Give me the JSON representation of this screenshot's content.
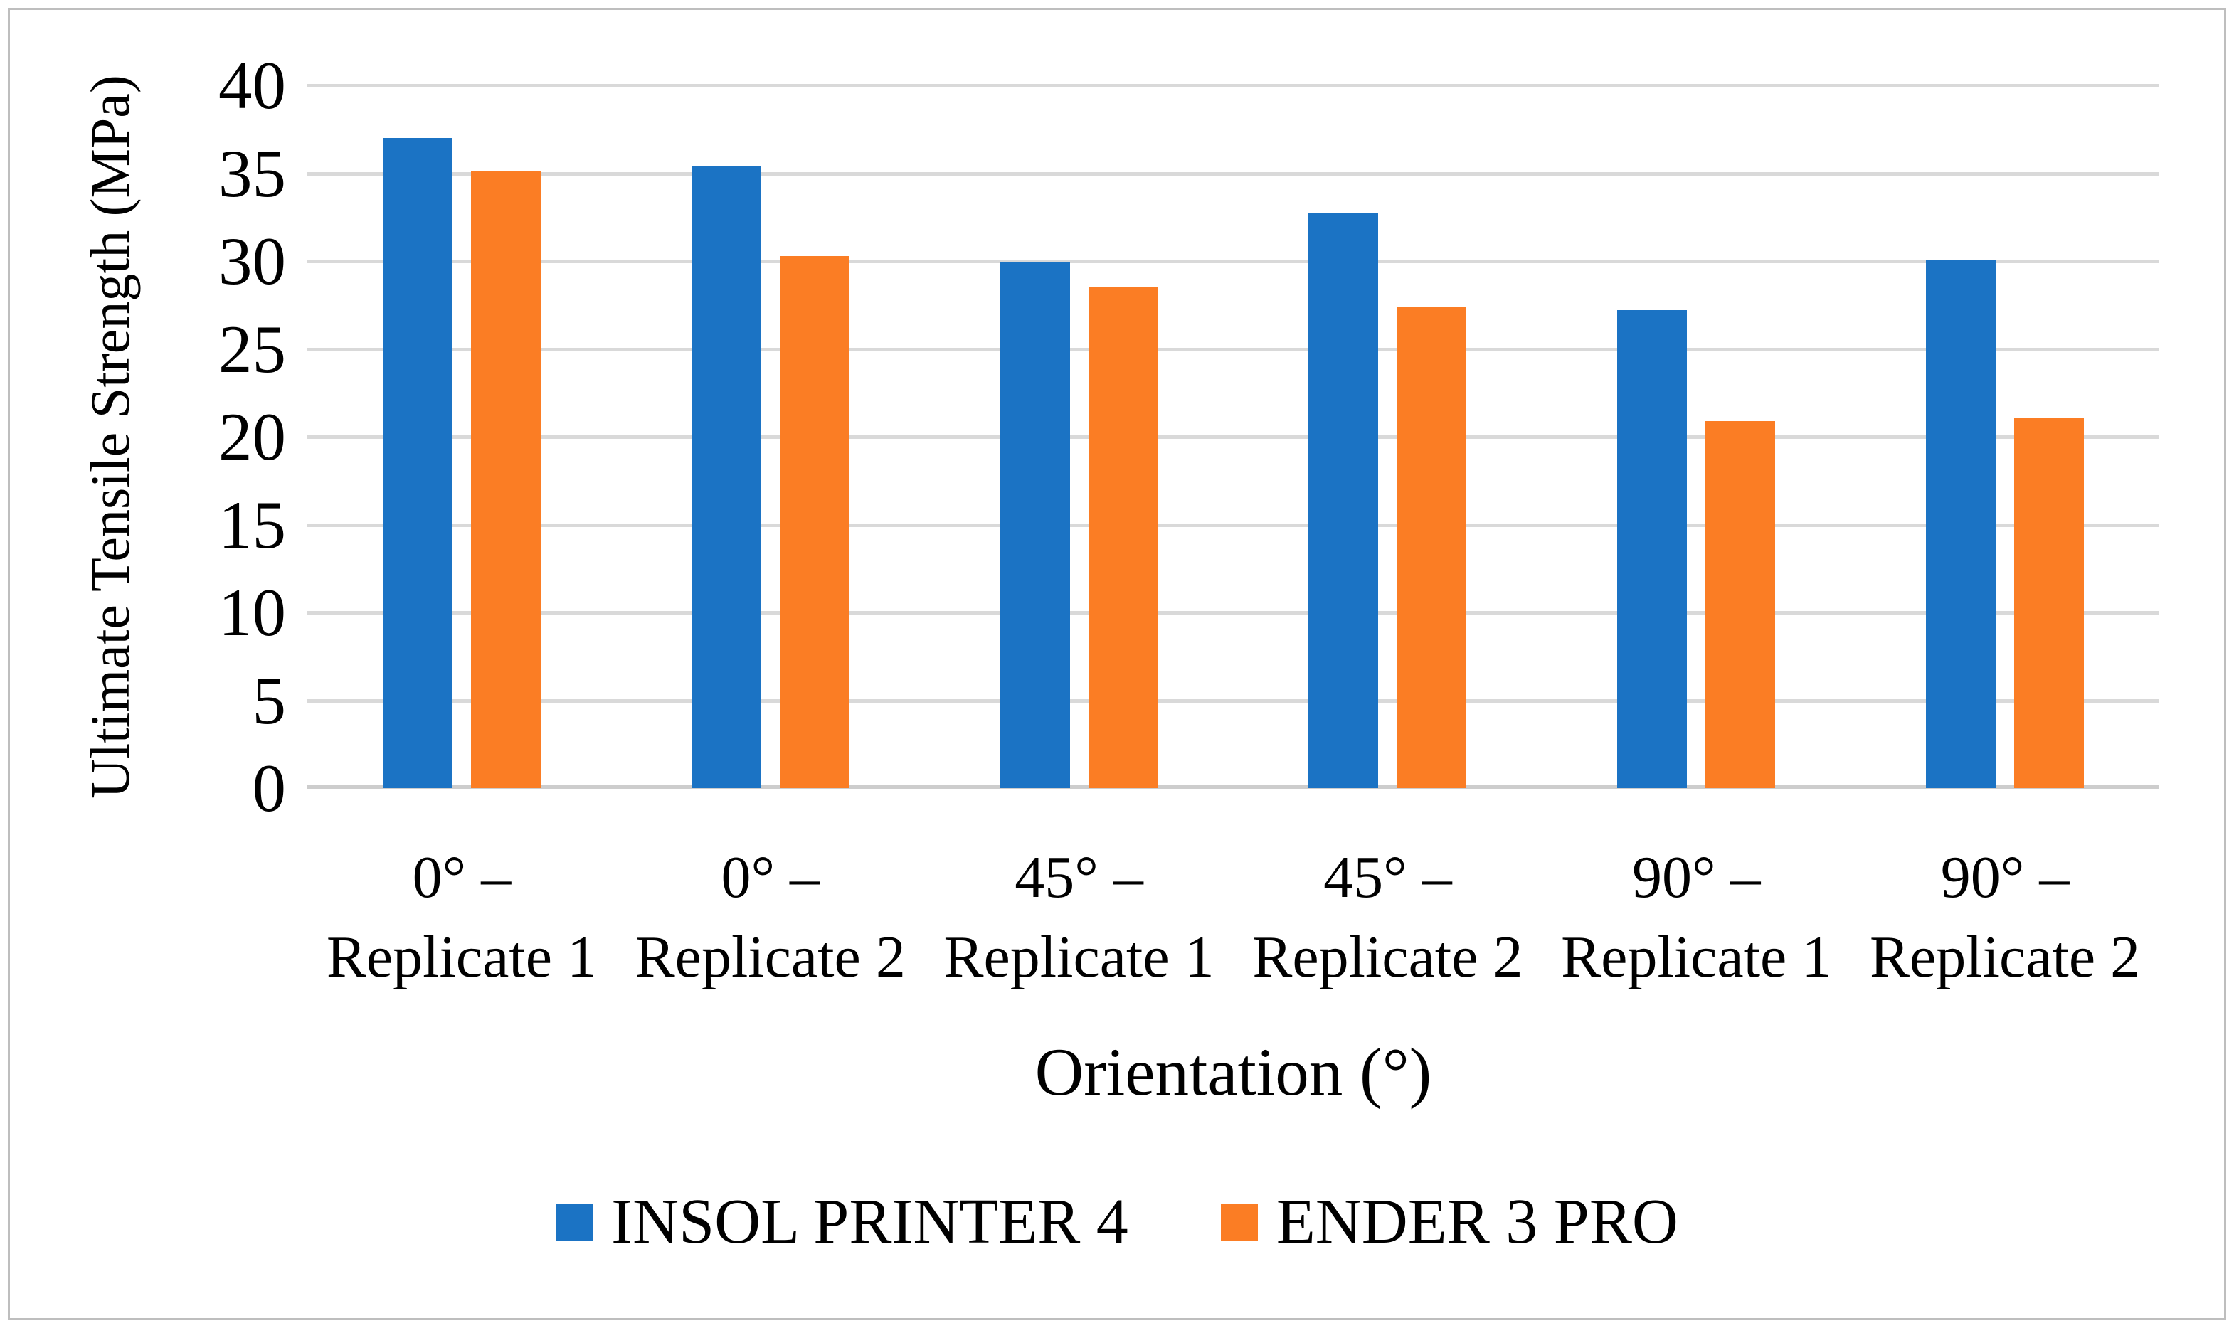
{
  "chart_data": {
    "type": "bar",
    "title": "",
    "xlabel": "Orientation (°)",
    "ylabel": "Ultimate Tensile Strength (MPa)",
    "ylim": [
      0,
      40
    ],
    "yticks": [
      0,
      5,
      10,
      15,
      20,
      25,
      30,
      35,
      40
    ],
    "grid": true,
    "legend_position": "bottom",
    "categories": [
      {
        "line1": "0° –",
        "line2": "Replicate 1",
        "label": "0° – Replicate 1"
      },
      {
        "line1": "0° –",
        "line2": "Replicate 2",
        "label": "0° – Replicate 2"
      },
      {
        "line1": "45° –",
        "line2": "Replicate 1",
        "label": "45° – Replicate 1"
      },
      {
        "line1": "45° –",
        "line2": "Replicate 2",
        "label": "45° – Replicate 2"
      },
      {
        "line1": "90° –",
        "line2": "Replicate 1",
        "label": "90° – Replicate 1"
      },
      {
        "line1": "90° –",
        "line2": "Replicate 2",
        "label": "90° – Replicate 2"
      }
    ],
    "series": [
      {
        "name": "INSOL PRINTER 4",
        "color": "#1B73C4",
        "values": [
          37.0,
          35.4,
          29.9,
          32.7,
          27.2,
          30.1
        ]
      },
      {
        "name": "ENDER 3 PRO",
        "color": "#FB7D24",
        "values": [
          35.1,
          30.3,
          28.5,
          27.4,
          20.9,
          21.1
        ]
      }
    ],
    "colors": {
      "gridline": "#D9D9D9",
      "baseline": "#CDCDCD",
      "frame_border": "#BEBEBE",
      "text": "#000000"
    }
  }
}
